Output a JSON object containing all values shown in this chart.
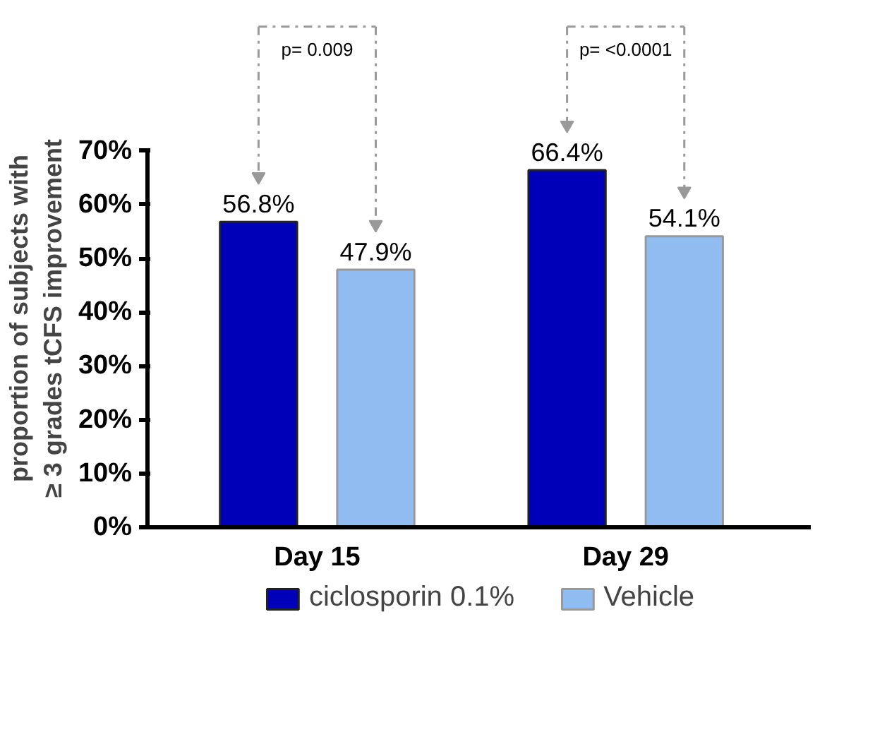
{
  "chart_data": {
    "type": "bar",
    "categories": [
      "Day 15",
      "Day 29"
    ],
    "series": [
      {
        "name": "ciclosporin 0.1%",
        "color": "#0000b8",
        "values": [
          56.8,
          66.4
        ],
        "value_labels": [
          "56.8%",
          "66.4%"
        ]
      },
      {
        "name": "Vehicle",
        "color": "#91bcf2",
        "values": [
          47.9,
          54.1
        ],
        "value_labels": [
          "47.9%",
          "54.1%"
        ]
      }
    ],
    "ylabel": "proportion of subjects with\n≥ 3 grades tCFS improvement",
    "ylim": [
      0,
      70
    ],
    "yticks": [
      {
        "value": 0,
        "label": "0%"
      },
      {
        "value": 10,
        "label": "10%"
      },
      {
        "value": 20,
        "label": "20%"
      },
      {
        "value": 30,
        "label": "30%"
      },
      {
        "value": 40,
        "label": "40%"
      },
      {
        "value": 50,
        "label": "50%"
      },
      {
        "value": 60,
        "label": "60%"
      },
      {
        "value": 70,
        "label": "70%"
      }
    ],
    "annotations": [
      "p= 0.009",
      "p= <0.0001"
    ],
    "grid": false,
    "legend": "bottom"
  }
}
